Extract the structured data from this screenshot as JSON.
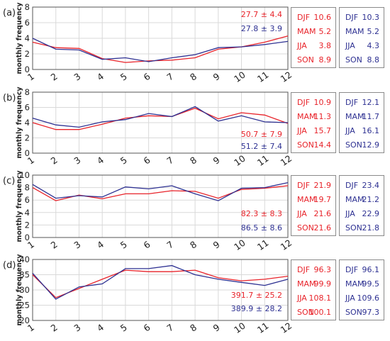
{
  "colors": {
    "series_red": "#e8232a",
    "series_blue": "#2e3192",
    "grid": "#d9d9d9",
    "box_border": "#8a8a8a"
  },
  "chart_data": [
    {
      "type": "line",
      "panel_label": "(a)",
      "ylabel": "monthly frequency",
      "x": [
        1,
        2,
        3,
        4,
        5,
        6,
        7,
        8,
        9,
        10,
        11,
        12
      ],
      "ylim": [
        0,
        8
      ],
      "yticks": [
        0,
        2,
        4,
        6,
        8
      ],
      "grid": true,
      "series": [
        {
          "color": "#e8232a",
          "values": [
            3.5,
            2.8,
            2.7,
            1.4,
            0.9,
            1.1,
            1.2,
            1.5,
            2.6,
            2.9,
            3.5,
            4.3
          ]
        },
        {
          "color": "#2e3192",
          "values": [
            4.0,
            2.6,
            2.5,
            1.3,
            1.5,
            1.0,
            1.5,
            1.9,
            2.8,
            2.9,
            3.2,
            3.6
          ]
        }
      ],
      "annotations": [
        {
          "text": "27.7 ± 4.4",
          "color": "#e8232a"
        },
        {
          "text": "27.8 ± 3.9",
          "color": "#2e3192"
        }
      ],
      "seasonal_red": [
        {
          "season": "DJF",
          "value": "10.6"
        },
        {
          "season": "MAM",
          "value": "5.2"
        },
        {
          "season": "JJA",
          "value": "3.8"
        },
        {
          "season": "SON",
          "value": "8.9"
        }
      ],
      "seasonal_blue": [
        {
          "season": "DJF",
          "value": "10.3"
        },
        {
          "season": "MAM",
          "value": "5.2"
        },
        {
          "season": "JJA",
          "value": "4.3"
        },
        {
          "season": "SON",
          "value": "8.8"
        }
      ]
    },
    {
      "type": "line",
      "panel_label": "(b)",
      "ylabel": "monthly frequency",
      "x": [
        1,
        2,
        3,
        4,
        5,
        6,
        7,
        8,
        9,
        10,
        11,
        12
      ],
      "ylim": [
        0,
        8
      ],
      "yticks": [
        0,
        2,
        4,
        6,
        8
      ],
      "grid": true,
      "series": [
        {
          "color": "#e8232a",
          "values": [
            4.0,
            3.1,
            3.1,
            3.8,
            4.6,
            4.9,
            4.8,
            5.9,
            4.5,
            5.3,
            5.0,
            3.9
          ]
        },
        {
          "color": "#2e3192",
          "values": [
            4.6,
            3.7,
            3.4,
            4.1,
            4.4,
            5.2,
            4.8,
            6.1,
            4.2,
            4.9,
            4.1,
            4.0
          ]
        }
      ],
      "annotations": [
        {
          "text": "50.7 ± 7.9",
          "color": "#e8232a"
        },
        {
          "text": "51.2 ± 7.4",
          "color": "#2e3192"
        }
      ],
      "seasonal_red": [
        {
          "season": "DJF",
          "value": "10.9"
        },
        {
          "season": "MAM",
          "value": "11.3"
        },
        {
          "season": "JJA",
          "value": "15.7"
        },
        {
          "season": "SON",
          "value": "14.4"
        }
      ],
      "seasonal_blue": [
        {
          "season": "DJF",
          "value": "12.1"
        },
        {
          "season": "MAM",
          "value": "11.7"
        },
        {
          "season": "JJA",
          "value": "16.1"
        },
        {
          "season": "SON",
          "value": "12.9"
        }
      ]
    },
    {
      "type": "line",
      "panel_label": "(c)",
      "ylabel": "monthly frequency",
      "x": [
        1,
        2,
        3,
        4,
        5,
        6,
        7,
        8,
        9,
        10,
        11,
        12
      ],
      "ylim": [
        0,
        10
      ],
      "yticks": [
        0,
        2,
        4,
        6,
        8,
        10
      ],
      "grid": true,
      "series": [
        {
          "color": "#e8232a",
          "values": [
            8.0,
            5.9,
            6.8,
            6.2,
            7.0,
            7.0,
            7.5,
            7.4,
            6.3,
            7.7,
            7.9,
            8.3
          ]
        },
        {
          "color": "#2e3192",
          "values": [
            8.5,
            6.3,
            6.7,
            6.5,
            8.1,
            7.8,
            8.3,
            7.0,
            5.9,
            7.9,
            8.0,
            8.8
          ]
        }
      ],
      "annotations": [
        {
          "text": "82.3 ± 8.3",
          "color": "#e8232a"
        },
        {
          "text": "86.5 ± 8.6",
          "color": "#2e3192"
        }
      ],
      "seasonal_red": [
        {
          "season": "DJF",
          "value": "21.9"
        },
        {
          "season": "MAM",
          "value": "19.7"
        },
        {
          "season": "JJA",
          "value": "21.6"
        },
        {
          "season": "SON",
          "value": "21.6"
        }
      ],
      "seasonal_blue": [
        {
          "season": "DJF",
          "value": "23.4"
        },
        {
          "season": "MAM",
          "value": "21.2"
        },
        {
          "season": "JJA",
          "value": "22.9"
        },
        {
          "season": "SON",
          "value": "21.8"
        }
      ]
    },
    {
      "type": "line",
      "panel_label": "(d)",
      "ylabel": "monthly frequency",
      "x": [
        1,
        2,
        3,
        4,
        5,
        6,
        7,
        8,
        9,
        10,
        11,
        12
      ],
      "ylim": [
        20,
        40
      ],
      "yticks": [
        20,
        25,
        30,
        35,
        40
      ],
      "grid": true,
      "series": [
        {
          "color": "#e8232a",
          "values": [
            35.0,
            27.5,
            30.5,
            33.5,
            36.5,
            36.0,
            36.0,
            36.5,
            34.0,
            33.0,
            33.5,
            34.5
          ]
        },
        {
          "color": "#2e3192",
          "values": [
            35.5,
            27.0,
            31.0,
            32.0,
            37.0,
            37.0,
            38.0,
            35.0,
            33.5,
            32.5,
            31.5,
            33.5
          ]
        }
      ],
      "annotations": [
        {
          "text": "391.7 ± 25.2",
          "color": "#e8232a"
        },
        {
          "text": "389.9 ± 28.2",
          "color": "#2e3192"
        }
      ],
      "seasonal_red": [
        {
          "season": "DJF",
          "value": "96.3"
        },
        {
          "season": "MAM",
          "value": "99.9"
        },
        {
          "season": "JJA",
          "value": "108.1"
        },
        {
          "season": "SON",
          "value": "100.1"
        }
      ],
      "seasonal_blue": [
        {
          "season": "DJF",
          "value": "96.1"
        },
        {
          "season": "MAM",
          "value": "99.5"
        },
        {
          "season": "JJA",
          "value": "109.6"
        },
        {
          "season": "SON",
          "value": "97.3"
        }
      ]
    }
  ]
}
